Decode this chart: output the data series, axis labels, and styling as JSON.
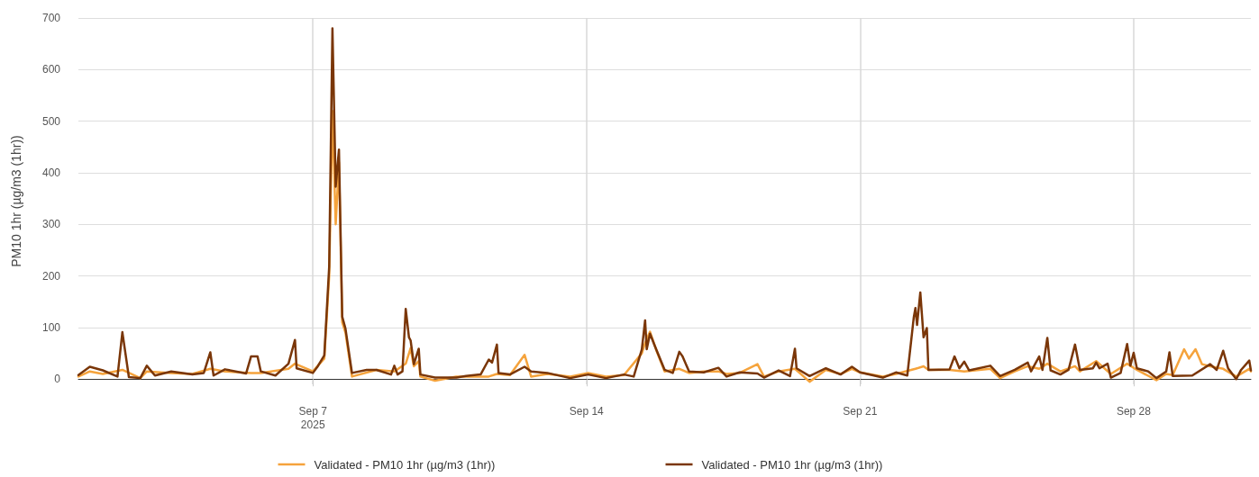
{
  "chart_data": {
    "type": "line",
    "ylabel": "PM10 1hr (µg/m3 (1hr))",
    "xlim": [
      "2025-09-01T00:00",
      "2025-10-01T00:00"
    ],
    "xticks": [
      {
        "value": "2025-09-07",
        "label": "Sep 7\n2025"
      },
      {
        "value": "2025-09-14",
        "label": "Sep 14"
      },
      {
        "value": "2025-09-21",
        "label": "Sep 21"
      },
      {
        "value": "2025-09-28",
        "label": "Sep 28"
      }
    ],
    "ylim": [
      -10,
      700
    ],
    "yticks": [
      0,
      100,
      200,
      300,
      400,
      500,
      600,
      700
    ],
    "grid": true,
    "legend": "bottom",
    "marker": "none",
    "line_style": "solid",
    "series": [
      {
        "name": "Validated - PM10 1hr (µg/m3 (1hr))",
        "color": "#f5a33c",
        "x": [
          "2025-09-01T00:00",
          "2025-09-01T07:00",
          "2025-09-01T15:00",
          "2025-09-02T03:00",
          "2025-09-02T14:00",
          "2025-09-02T18:00",
          "2025-09-03T09:00",
          "2025-09-03T22:00",
          "2025-09-04T09:00",
          "2025-09-04T18:00",
          "2025-09-05T10:00",
          "2025-09-05T16:00",
          "2025-09-06T09:00",
          "2025-09-06T13:00",
          "2025-09-07T00:00",
          "2025-09-07T07:00",
          "2025-09-07T10:00",
          "2025-09-07T12:00",
          "2025-09-07T14:00",
          "2025-09-07T16:00",
          "2025-09-07T18:00",
          "2025-09-07T20:00",
          "2025-09-08T00:00",
          "2025-09-08T15:00",
          "2025-09-09T02:00",
          "2025-09-09T09:00",
          "2025-09-09T12:00",
          "2025-09-09T14:00",
          "2025-09-09T17:00",
          "2025-09-09T18:00",
          "2025-09-10T03:00",
          "2025-09-10T16:00",
          "2025-09-11T07:00",
          "2025-09-11T12:00",
          "2025-09-11T17:00",
          "2025-09-12T01:00",
          "2025-09-12T10:00",
          "2025-09-12T14:00",
          "2025-09-13T00:00",
          "2025-09-13T14:00",
          "2025-09-14T01:00",
          "2025-09-14T12:00",
          "2025-09-14T23:00",
          "2025-09-15T10:00",
          "2025-09-15T12:00",
          "2025-09-15T15:00",
          "2025-09-15T19:00",
          "2025-09-16T00:00",
          "2025-09-16T09:00",
          "2025-09-16T15:00",
          "2025-09-17T00:00",
          "2025-09-17T09:00",
          "2025-09-17T14:00",
          "2025-09-17T22:00",
          "2025-09-18T09:00",
          "2025-09-18T13:00",
          "2025-09-18T22:00",
          "2025-09-19T08:00",
          "2025-09-19T17:00",
          "2025-09-20T03:00",
          "2025-09-20T12:00",
          "2025-09-20T19:00",
          "2025-09-21T00:00",
          "2025-09-21T14:00",
          "2025-09-21T22:00",
          "2025-09-22T10:00",
          "2025-09-22T15:00",
          "2025-09-22T18:00",
          "2025-09-23T07:00",
          "2025-09-23T16:00",
          "2025-09-24T08:00",
          "2025-09-24T14:00",
          "2025-09-24T23:00",
          "2025-09-25T07:00",
          "2025-09-25T14:00",
          "2025-09-25T19:00",
          "2025-09-26T03:00",
          "2025-09-26T12:00",
          "2025-09-26T15:00",
          "2025-09-27T01:00",
          "2025-09-27T10:00",
          "2025-09-27T20:00",
          "2025-09-28T02:00",
          "2025-09-28T14:00",
          "2025-09-28T20:00",
          "2025-09-29T00:00",
          "2025-09-29T07:00",
          "2025-09-29T10:00",
          "2025-09-29T14:00",
          "2025-09-29T18:00",
          "2025-09-29T23:00",
          "2025-09-30T07:00",
          "2025-09-30T15:00",
          "2025-09-30T23:00",
          "2025-10-01T00:00"
        ],
        "values": [
          5,
          15,
          10,
          18,
          2,
          15,
          12,
          10,
          20,
          15,
          12,
          12,
          20,
          30,
          15,
          40,
          200,
          520,
          300,
          420,
          110,
          90,
          5,
          18,
          15,
          30,
          60,
          25,
          35,
          5,
          -3,
          5,
          5,
          5,
          10,
          8,
          47,
          5,
          10,
          5,
          12,
          5,
          8,
          50,
          70,
          92,
          55,
          15,
          20,
          12,
          15,
          15,
          10,
          12,
          29,
          5,
          15,
          20,
          -5,
          18,
          10,
          20,
          13,
          5,
          10,
          20,
          25,
          18,
          18,
          15,
          20,
          2,
          15,
          25,
          20,
          30,
          15,
          25,
          15,
          35,
          10,
          30,
          18,
          -2,
          10,
          8,
          58,
          40,
          58,
          29,
          25,
          20,
          5,
          20,
          15
        ]
      },
      {
        "name": "Validated - PM10 1hr (µg/m3 (1hr))",
        "color": "#7a3608",
        "x": [
          "2025-09-01T00:00",
          "2025-09-01T07:00",
          "2025-09-01T15:00",
          "2025-09-02T00:00",
          "2025-09-02T03:00",
          "2025-09-02T07:00",
          "2025-09-02T14:00",
          "2025-09-02T18:00",
          "2025-09-02T23:00",
          "2025-09-03T09:00",
          "2025-09-03T22:00",
          "2025-09-04T05:00",
          "2025-09-04T09:00",
          "2025-09-04T11:00",
          "2025-09-04T18:00",
          "2025-09-05T07:00",
          "2025-09-05T10:00",
          "2025-09-05T14:00",
          "2025-09-05T16:00",
          "2025-09-06T01:00",
          "2025-09-06T09:00",
          "2025-09-06T13:00",
          "2025-09-06T14:00",
          "2025-09-07T00:00",
          "2025-09-07T03:00",
          "2025-09-07T07:00",
          "2025-09-07T10:00",
          "2025-09-07T12:00",
          "2025-09-07T14:00",
          "2025-09-07T16:00",
          "2025-09-07T18:00",
          "2025-09-07T20:00",
          "2025-09-08T00:00",
          "2025-09-08T09:00",
          "2025-09-08T15:00",
          "2025-09-09T00:00",
          "2025-09-09T02:00",
          "2025-09-09T04:00",
          "2025-09-09T07:00",
          "2025-09-09T09:00",
          "2025-09-09T11:00",
          "2025-09-09T12:00",
          "2025-09-09T14:00",
          "2025-09-09T17:00",
          "2025-09-09T18:00",
          "2025-09-10T03:00",
          "2025-09-10T16:00",
          "2025-09-10T22:00",
          "2025-09-11T07:00",
          "2025-09-11T12:00",
          "2025-09-11T14:00",
          "2025-09-11T17:00",
          "2025-09-11T18:00",
          "2025-09-12T01:00",
          "2025-09-12T10:00",
          "2025-09-12T14:00",
          "2025-09-13T00:00",
          "2025-09-13T14:00",
          "2025-09-14T01:00",
          "2025-09-14T12:00",
          "2025-09-14T23:00",
          "2025-09-15T05:00",
          "2025-09-15T10:00",
          "2025-09-15T12:00",
          "2025-09-15T13:00",
          "2025-09-15T15:00",
          "2025-09-15T18:00",
          "2025-09-16T00:00",
          "2025-09-16T05:00",
          "2025-09-16T09:00",
          "2025-09-16T11:00",
          "2025-09-16T15:00",
          "2025-09-17T00:00",
          "2025-09-17T09:00",
          "2025-09-17T14:00",
          "2025-09-17T22:00",
          "2025-09-18T09:00",
          "2025-09-18T13:00",
          "2025-09-18T22:00",
          "2025-09-19T05:00",
          "2025-09-19T08:00",
          "2025-09-19T09:00",
          "2025-09-19T17:00",
          "2025-09-20T03:00",
          "2025-09-20T12:00",
          "2025-09-20T19:00",
          "2025-09-21T00:00",
          "2025-09-21T14:00",
          "2025-09-21T22:00",
          "2025-09-22T05:00",
          "2025-09-22T09:00",
          "2025-09-22T10:00",
          "2025-09-22T11:00",
          "2025-09-22T13:00",
          "2025-09-22T15:00",
          "2025-09-22T17:00",
          "2025-09-22T18:00",
          "2025-09-23T07:00",
          "2025-09-23T10:00",
          "2025-09-23T13:00",
          "2025-09-23T16:00",
          "2025-09-23T19:00",
          "2025-09-24T08:00",
          "2025-09-24T14:00",
          "2025-09-24T23:00",
          "2025-09-25T07:00",
          "2025-09-25T09:00",
          "2025-09-25T14:00",
          "2025-09-25T16:00",
          "2025-09-25T19:00",
          "2025-09-25T21:00",
          "2025-09-26T03:00",
          "2025-09-26T08:00",
          "2025-09-26T12:00",
          "2025-09-26T15:00",
          "2025-09-26T23:00",
          "2025-09-27T01:00",
          "2025-09-27T03:00",
          "2025-09-27T08:00",
          "2025-09-27T10:00",
          "2025-09-27T16:00",
          "2025-09-27T20:00",
          "2025-09-27T22:00",
          "2025-09-28T00:00",
          "2025-09-28T02:00",
          "2025-09-28T09:00",
          "2025-09-28T14:00",
          "2025-09-28T20:00",
          "2025-09-28T22:00",
          "2025-09-29T00:00",
          "2025-09-29T12:00",
          "2025-09-29T23:00",
          "2025-09-30T03:00",
          "2025-09-30T07:00",
          "2025-09-30T10:00",
          "2025-09-30T15:00",
          "2025-09-30T18:00",
          "2025-09-30T23:00",
          "2025-10-01T00:00"
        ],
        "values": [
          8,
          24,
          17,
          5,
          91,
          4,
          2,
          26,
          7,
          15,
          9,
          12,
          52,
          7,
          19,
          11,
          44,
          44,
          15,
          7,
          30,
          76,
          21,
          12,
          25,
          46,
          218,
          680,
          373,
          445,
          121,
          98,
          12,
          18,
          18,
          9,
          26,
          9,
          15,
          136,
          81,
          75,
          29,
          59,
          9,
          3,
          3,
          6,
          9,
          38,
          32,
          67,
          12,
          9,
          24,
          15,
          12,
          2,
          9,
          2,
          9,
          5,
          58,
          114,
          58,
          88,
          64,
          18,
          12,
          53,
          44,
          15,
          13,
          22,
          5,
          13,
          11,
          3,
          17,
          6,
          59,
          21,
          6,
          21,
          9,
          24,
          13,
          3,
          13,
          7,
          120,
          138,
          105,
          168,
          81,
          99,
          18,
          19,
          44,
          21,
          34,
          17,
          26,
          6,
          18,
          32,
          15,
          44,
          18,
          80,
          17,
          9,
          18,
          67,
          18,
          21,
          32,
          21,
          30,
          3,
          12,
          68,
          26,
          51,
          21,
          15,
          2,
          15,
          52,
          6,
          7,
          29,
          18,
          55,
          21,
          0,
          18,
          36,
          17
        ]
      }
    ]
  }
}
